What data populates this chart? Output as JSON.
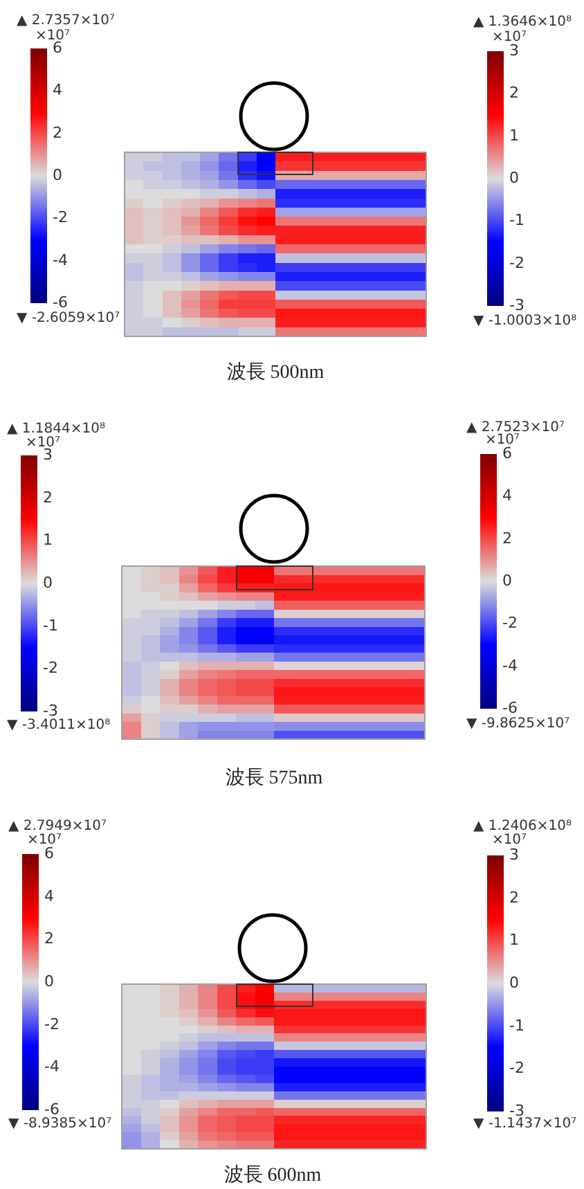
{
  "chart_data": [
    {
      "type": "heatmap",
      "categories": [
        null,
        null,
        null,
        null,
        null,
        null,
        null,
        null
      ],
      "y_categories": [
        null,
        null,
        null,
        null,
        null,
        null,
        null,
        null,
        null,
        null,
        null,
        null,
        null,
        null,
        null,
        null,
        null,
        null,
        null,
        null
      ],
      "cells": [
        [
          -0.1,
          -0.1,
          -0.2,
          -0.2,
          -0.4,
          -0.7,
          -1.1,
          -1.5
        ],
        [
          -0.1,
          -0.2,
          -0.2,
          -0.3,
          -0.5,
          -0.8,
          -1.3,
          -1.6
        ],
        [
          -0.1,
          -0.1,
          -0.2,
          -0.3,
          -0.4,
          -0.7,
          -1.2,
          -1.4
        ],
        [
          0.0,
          -0.1,
          -0.1,
          -0.2,
          -0.3,
          -0.5,
          -0.8,
          -1.0
        ],
        [
          0.0,
          0.0,
          0.0,
          0.0,
          -0.1,
          -0.1,
          -0.2,
          -0.3
        ],
        [
          0.1,
          0.0,
          0.1,
          0.2,
          0.3,
          0.5,
          0.6,
          0.7
        ],
        [
          0.2,
          0.1,
          0.2,
          0.3,
          0.6,
          0.9,
          1.2,
          1.3
        ],
        [
          0.2,
          0.1,
          0.2,
          0.5,
          0.8,
          1.1,
          1.4,
          1.5
        ],
        [
          0.2,
          0.1,
          0.2,
          0.4,
          0.7,
          1.0,
          1.2,
          1.3
        ],
        [
          0.2,
          0.1,
          0.1,
          0.2,
          0.2,
          0.3,
          0.5,
          0.5
        ],
        [
          0.0,
          0.0,
          -0.1,
          -0.2,
          -0.4,
          -0.6,
          -0.7,
          -0.8
        ],
        [
          -0.1,
          -0.1,
          -0.2,
          -0.5,
          -0.8,
          -1.1,
          -1.3,
          -1.3
        ],
        [
          -0.2,
          -0.1,
          -0.2,
          -0.5,
          -0.8,
          -1.1,
          -1.2,
          -1.3
        ],
        [
          -0.2,
          -0.1,
          -0.1,
          -0.2,
          -0.4,
          -0.5,
          -0.6,
          -0.6
        ],
        [
          -0.1,
          0.0,
          0.0,
          0.1,
          0.2,
          0.3,
          0.3,
          0.3
        ],
        [
          -0.1,
          0.0,
          0.2,
          0.4,
          0.7,
          0.9,
          1.0,
          1.0
        ],
        [
          -0.1,
          0.0,
          0.2,
          0.5,
          0.8,
          1.1,
          1.1,
          1.1
        ],
        [
          -0.1,
          0.0,
          0.2,
          0.4,
          0.7,
          0.9,
          1.0,
          1.0
        ],
        [
          -0.1,
          -0.1,
          0.0,
          0.1,
          0.2,
          0.3,
          0.3,
          0.3
        ],
        [
          -0.1,
          -0.1,
          -0.2,
          -0.2,
          -0.2,
          -0.2,
          -0.1,
          -0.1
        ]
      ],
      "clim": [
        -3,
        3
      ],
      "cticks": [
        -3,
        -2,
        -1,
        0,
        1,
        2,
        3
      ],
      "clabel": "×10⁷",
      "annotations": [
        "▲ 1.3646×10⁸",
        "▼ -1.0003×10⁸",
        "波長 500nm"
      ]
    },
    {
      "type": "heatmap",
      "categories": [
        null
      ],
      "y_categories": [
        null,
        null,
        null,
        null,
        null,
        null,
        null,
        null,
        null,
        null,
        null,
        null,
        null,
        null,
        null,
        null,
        null,
        null,
        null,
        null
      ],
      "cells": [
        [
          2.6
        ],
        [
          2.3
        ],
        [
          0.7
        ],
        [
          -1.6
        ],
        [
          -2.6
        ],
        [
          -2.4
        ],
        [
          -0.8
        ],
        [
          1.4
        ],
        [
          2.6
        ],
        [
          2.6
        ],
        [
          1.6
        ],
        [
          -0.4
        ],
        [
          -2.2
        ],
        [
          -2.6
        ],
        [
          -2.0
        ],
        [
          -0.3
        ],
        [
          1.8
        ],
        [
          2.7
        ],
        [
          2.6
        ],
        [
          1.4
        ]
      ],
      "clim": [
        -6,
        6
      ],
      "cticks": [
        -6,
        -4,
        -2,
        0,
        2,
        4,
        6
      ],
      "clabel": "×10⁷",
      "annotations": [
        "▲ 2.7357×10⁷",
        "▼ -2.6059×10⁷"
      ]
    },
    {
      "type": "heatmap",
      "categories": [
        null,
        null,
        null,
        null,
        null,
        null,
        null,
        null
      ],
      "y_categories": [
        null,
        null,
        null,
        null,
        null,
        null,
        null,
        null,
        null,
        null,
        null,
        null,
        null,
        null,
        null,
        null,
        null,
        null,
        null,
        null
      ],
      "cells": [
        [
          0.0,
          0.1,
          0.2,
          0.5,
          0.9,
          1.3,
          1.6,
          1.7
        ],
        [
          0.0,
          0.1,
          0.2,
          0.6,
          1.0,
          1.3,
          1.6,
          1.6
        ],
        [
          0.0,
          0.1,
          0.1,
          0.4,
          0.8,
          1.1,
          1.3,
          1.3
        ],
        [
          0.0,
          0.0,
          0.1,
          0.2,
          0.4,
          0.5,
          0.6,
          0.6
        ],
        [
          0.0,
          0.0,
          0.0,
          0.0,
          0.0,
          -0.1,
          -0.1,
          -0.2
        ],
        [
          0.0,
          -0.1,
          -0.1,
          -0.2,
          -0.4,
          -0.6,
          -0.8,
          -0.8
        ],
        [
          -0.1,
          -0.1,
          -0.2,
          -0.4,
          -0.7,
          -1.1,
          -1.3,
          -1.3
        ],
        [
          -0.1,
          -0.1,
          -0.3,
          -0.6,
          -0.9,
          -1.3,
          -1.5,
          -1.5
        ],
        [
          -0.1,
          -0.2,
          -0.4,
          -0.6,
          -0.9,
          -1.3,
          -1.5,
          -1.6
        ],
        [
          -0.1,
          -0.2,
          -0.4,
          -0.5,
          -0.7,
          -0.9,
          -1.1,
          -1.1
        ],
        [
          -0.1,
          -0.2,
          -0.2,
          -0.2,
          -0.3,
          -0.3,
          -0.4,
          -0.4
        ],
        [
          -0.2,
          -0.1,
          0.0,
          0.2,
          0.3,
          0.3,
          0.3,
          0.3
        ],
        [
          -0.2,
          -0.1,
          0.1,
          0.4,
          0.6,
          0.7,
          0.8,
          0.8
        ],
        [
          -0.2,
          -0.1,
          0.3,
          0.6,
          0.8,
          0.9,
          1.0,
          1.0
        ],
        [
          -0.2,
          -0.1,
          0.3,
          0.6,
          0.8,
          0.9,
          1.0,
          1.0
        ],
        [
          -0.1,
          0.0,
          0.2,
          0.4,
          0.6,
          0.8,
          0.8,
          0.8
        ],
        [
          0.1,
          0.0,
          0.1,
          0.1,
          0.3,
          0.4,
          0.4,
          0.4
        ],
        [
          0.4,
          0.1,
          -0.1,
          -0.1,
          -0.1,
          -0.1,
          -0.2,
          -0.2
        ],
        [
          0.6,
          0.1,
          -0.2,
          -0.4,
          -0.5,
          -0.5,
          -0.5,
          -0.5
        ],
        [
          0.6,
          0.1,
          -0.2,
          -0.4,
          -0.6,
          -0.6,
          -0.6,
          -0.6
        ]
      ],
      "clim": [
        -3,
        3
      ],
      "cticks": [
        -3,
        -2,
        -1,
        0,
        1,
        2,
        3
      ],
      "clabel": "×10⁷",
      "annotations": [
        "▲ 1.1844×10⁸",
        "▼ -3.4011×10⁸",
        "波長 575nm"
      ]
    },
    {
      "type": "heatmap",
      "categories": [
        null
      ],
      "y_categories": [
        null,
        null,
        null,
        null,
        null,
        null,
        null,
        null,
        null,
        null,
        null,
        null,
        null,
        null,
        null,
        null,
        null,
        null,
        null,
        null
      ],
      "cells": [
        [
          1.4
        ],
        [
          2.4
        ],
        [
          2.7
        ],
        [
          2.6
        ],
        [
          1.7
        ],
        [
          0.2
        ],
        [
          -1.4
        ],
        [
          -2.4
        ],
        [
          -2.7
        ],
        [
          -2.4
        ],
        [
          -1.4
        ],
        [
          0.1
        ],
        [
          1.6
        ],
        [
          2.4
        ],
        [
          2.7
        ],
        [
          2.6
        ],
        [
          1.8
        ],
        [
          0.3
        ],
        [
          -1.1
        ],
        [
          -1.9
        ]
      ],
      "clim": [
        -6,
        6
      ],
      "cticks": [
        -6,
        -4,
        -2,
        0,
        2,
        4,
        6
      ],
      "clabel": "×10⁷",
      "annotations": [
        "▲ 2.7523×10⁷",
        "▼ -9.8625×10⁷"
      ]
    },
    {
      "type": "heatmap",
      "categories": [
        null,
        null,
        null,
        null,
        null,
        null,
        null,
        null
      ],
      "y_categories": [
        null,
        null,
        null,
        null,
        null,
        null,
        null,
        null,
        null,
        null,
        null,
        null,
        null,
        null,
        null,
        null,
        null,
        null,
        null,
        null
      ],
      "cells": [
        [
          0.0,
          0.0,
          0.1,
          0.3,
          0.6,
          1.0,
          1.3,
          1.5
        ],
        [
          0.0,
          0.0,
          0.1,
          0.3,
          0.6,
          1.0,
          1.4,
          1.6
        ],
        [
          0.0,
          0.0,
          0.1,
          0.3,
          0.6,
          1.0,
          1.4,
          1.6
        ],
        [
          0.0,
          0.0,
          0.1,
          0.2,
          0.5,
          0.9,
          1.2,
          1.4
        ],
        [
          0.0,
          0.0,
          0.0,
          0.1,
          0.3,
          0.6,
          0.8,
          0.9
        ],
        [
          0.0,
          0.0,
          0.0,
          0.0,
          0.1,
          0.2,
          0.3,
          0.3
        ],
        [
          0.0,
          0.0,
          0.0,
          -0.1,
          -0.2,
          -0.2,
          -0.2,
          -0.2
        ],
        [
          0.0,
          0.0,
          -0.1,
          -0.2,
          -0.4,
          -0.6,
          -0.7,
          -0.7
        ],
        [
          0.0,
          -0.1,
          -0.2,
          -0.4,
          -0.6,
          -0.9,
          -1.0,
          -1.1
        ],
        [
          0.0,
          -0.1,
          -0.3,
          -0.5,
          -0.7,
          -1.0,
          -1.1,
          -1.1
        ],
        [
          0.0,
          -0.1,
          -0.3,
          -0.5,
          -0.7,
          -1.0,
          -1.1,
          -1.1
        ],
        [
          -0.1,
          -0.2,
          -0.3,
          -0.4,
          -0.6,
          -0.8,
          -0.9,
          -1.0
        ],
        [
          -0.1,
          -0.2,
          -0.3,
          -0.3,
          -0.4,
          -0.5,
          -0.6,
          -0.6
        ],
        [
          -0.1,
          -0.2,
          -0.2,
          -0.1,
          -0.1,
          -0.1,
          -0.1,
          -0.1
        ],
        [
          -0.1,
          -0.1,
          0.0,
          0.2,
          0.3,
          0.4,
          0.4,
          0.4
        ],
        [
          -0.2,
          -0.1,
          0.1,
          0.4,
          0.6,
          0.8,
          0.8,
          0.9
        ],
        [
          -0.3,
          -0.1,
          0.2,
          0.5,
          0.8,
          0.9,
          1.0,
          1.0
        ],
        [
          -0.4,
          -0.2,
          0.2,
          0.5,
          0.8,
          0.9,
          1.0,
          1.0
        ],
        [
          -0.5,
          -0.3,
          0.1,
          0.4,
          0.7,
          0.8,
          0.9,
          0.9
        ],
        [
          -0.5,
          -0.3,
          0.0,
          0.3,
          0.5,
          0.6,
          0.7,
          0.7
        ]
      ],
      "clim": [
        -3,
        3
      ],
      "cticks": [
        -3,
        -2,
        -1,
        0,
        1,
        2,
        3
      ],
      "clabel": "×10⁷",
      "annotations": [
        "▲ 1.2406×10⁸",
        "▼ -1.1437×10⁷",
        "波長 600nm"
      ]
    },
    {
      "type": "heatmap",
      "categories": [
        null
      ],
      "y_categories": [
        null,
        null,
        null,
        null,
        null,
        null,
        null,
        null,
        null,
        null,
        null,
        null,
        null,
        null,
        null,
        null,
        null,
        null,
        null,
        null
      ],
      "cells": [
        [
          -0.5
        ],
        [
          1.2
        ],
        [
          2.4
        ],
        [
          2.7
        ],
        [
          2.7
        ],
        [
          2.3
        ],
        [
          1.2
        ],
        [
          -0.3
        ],
        [
          -1.8
        ],
        [
          -2.7
        ],
        [
          -3.0
        ],
        [
          -3.0
        ],
        [
          -2.6
        ],
        [
          -1.4
        ],
        [
          0.2
        ],
        [
          1.6
        ],
        [
          2.5
        ],
        [
          2.7
        ],
        [
          2.7
        ],
        [
          2.5
        ]
      ],
      "clim": [
        -6,
        6
      ],
      "cticks": [
        -6,
        -4,
        -2,
        0,
        2,
        4,
        6
      ],
      "clabel": "×10⁷",
      "annotations": [
        "▲ 2.7949×10⁷",
        "▼ -8.9385×10⁷"
      ]
    }
  ]
}
